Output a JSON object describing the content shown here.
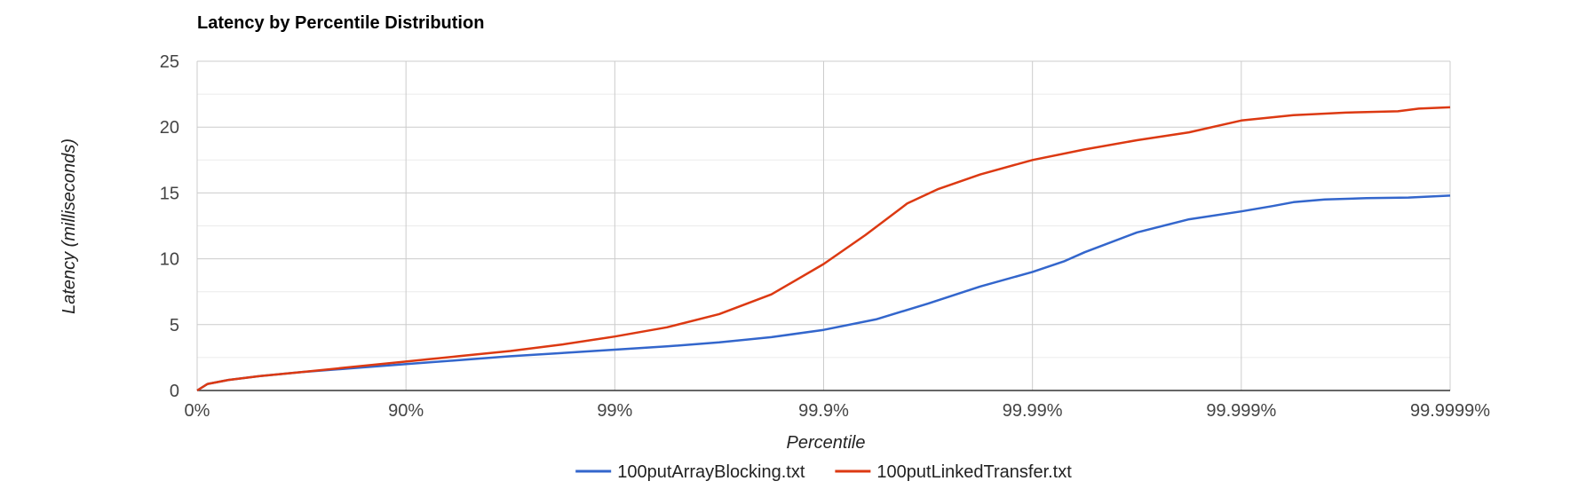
{
  "chart_data": {
    "type": "line",
    "title": "Latency by Percentile Distribution",
    "xlabel": "Percentile",
    "ylabel": "Latency (milliseconds)",
    "x_scale": "log-percentile",
    "x_ticks": [
      "0%",
      "90%",
      "99%",
      "99.9%",
      "99.99%",
      "99.999%",
      "99.9999%"
    ],
    "x_range": [
      0,
      6
    ],
    "y_ticks": [
      "0",
      "5",
      "10",
      "15",
      "20",
      "25"
    ],
    "ylim": [
      0,
      25
    ],
    "grid": true,
    "legend": "bottom",
    "series": [
      {
        "name": "100putArrayBlocking.txt",
        "color": "#3366cc",
        "points": [
          [
            0,
            0
          ],
          [
            0.05,
            0.5
          ],
          [
            0.15,
            0.8
          ],
          [
            0.3,
            1.1
          ],
          [
            0.5,
            1.4
          ],
          [
            0.75,
            1.7
          ],
          [
            1,
            2.0
          ],
          [
            1.25,
            2.3
          ],
          [
            1.5,
            2.6
          ],
          [
            1.75,
            2.85
          ],
          [
            2,
            3.1
          ],
          [
            2.25,
            3.35
          ],
          [
            2.5,
            3.65
          ],
          [
            2.75,
            4.05
          ],
          [
            3,
            4.6
          ],
          [
            3.25,
            5.4
          ],
          [
            3.5,
            6.6
          ],
          [
            3.75,
            7.9
          ],
          [
            4,
            9.0
          ],
          [
            4.15,
            9.8
          ],
          [
            4.25,
            10.5
          ],
          [
            4.5,
            12.0
          ],
          [
            4.75,
            13.0
          ],
          [
            5,
            13.6
          ],
          [
            5.15,
            14.0
          ],
          [
            5.25,
            14.3
          ],
          [
            5.4,
            14.5
          ],
          [
            5.6,
            14.6
          ],
          [
            5.8,
            14.65
          ],
          [
            6,
            14.8
          ]
        ]
      },
      {
        "name": "100putLinkedTransfer.txt",
        "color": "#dc3912",
        "points": [
          [
            0,
            0
          ],
          [
            0.05,
            0.5
          ],
          [
            0.15,
            0.8
          ],
          [
            0.3,
            1.1
          ],
          [
            0.5,
            1.4
          ],
          [
            0.75,
            1.8
          ],
          [
            1,
            2.2
          ],
          [
            1.25,
            2.6
          ],
          [
            1.5,
            3.0
          ],
          [
            1.75,
            3.5
          ],
          [
            2,
            4.1
          ],
          [
            2.25,
            4.8
          ],
          [
            2.5,
            5.8
          ],
          [
            2.75,
            7.3
          ],
          [
            3,
            9.6
          ],
          [
            3.2,
            11.8
          ],
          [
            3.4,
            14.2
          ],
          [
            3.55,
            15.3
          ],
          [
            3.75,
            16.4
          ],
          [
            4,
            17.5
          ],
          [
            4.25,
            18.3
          ],
          [
            4.5,
            19.0
          ],
          [
            4.75,
            19.6
          ],
          [
            5,
            20.5
          ],
          [
            5.25,
            20.9
          ],
          [
            5.5,
            21.1
          ],
          [
            5.75,
            21.2
          ],
          [
            5.85,
            21.4
          ],
          [
            6,
            21.5
          ]
        ]
      }
    ]
  }
}
